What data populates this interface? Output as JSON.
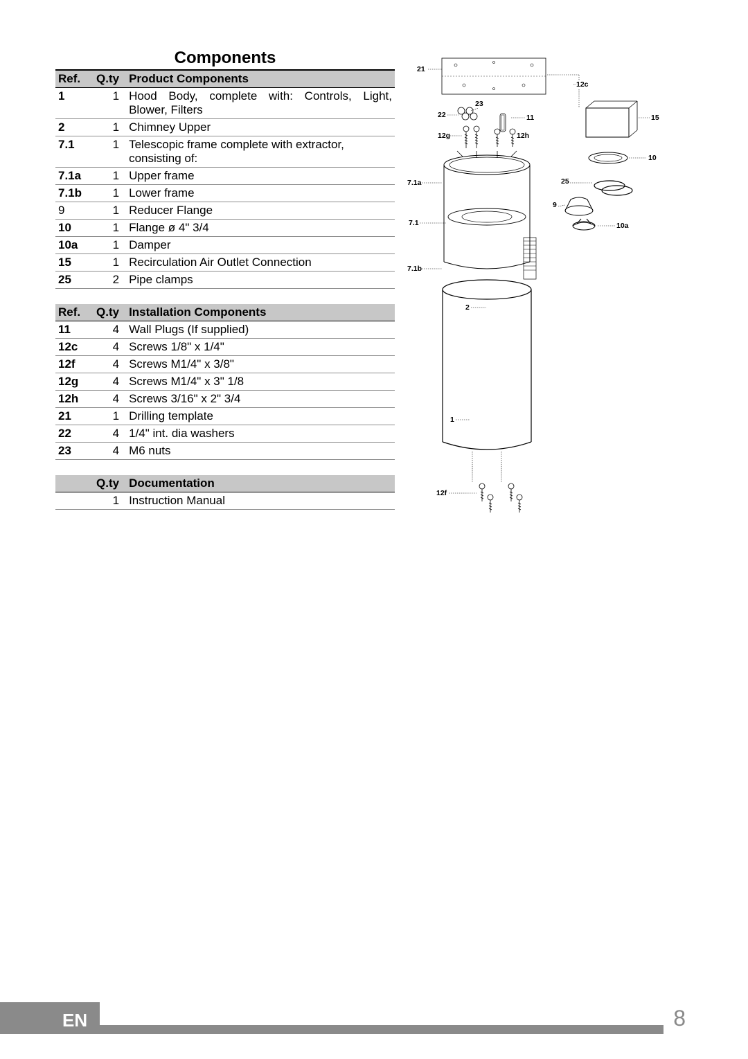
{
  "page_title": "Components",
  "footer": {
    "lang": "EN",
    "page_num": "8"
  },
  "tables": {
    "product": {
      "headers": {
        "ref": "Ref.",
        "qty": "Q.ty",
        "desc": "Product Components"
      },
      "rows": [
        {
          "ref": "1",
          "qty": "1",
          "desc": "Hood Body, complete with: Controls, Light, Blower, Filters",
          "justify": true
        },
        {
          "ref": "2",
          "qty": "1",
          "desc": "Chimney Upper"
        },
        {
          "ref": "7.1",
          "qty": "1",
          "desc": "Telescopic frame complete with extractor, consisting of:"
        },
        {
          "ref": "7.1a",
          "qty": "1",
          "desc": "Upper frame"
        },
        {
          "ref": "7.1b",
          "qty": "1",
          "desc": "Lower frame"
        },
        {
          "ref": "9",
          "qty": "1",
          "desc": "Reducer Flange",
          "ref_normal": true
        },
        {
          "ref": "10",
          "qty": "1",
          "desc": "Flange ø 4\" 3/4"
        },
        {
          "ref": "10a",
          "qty": "1",
          "desc": "Damper"
        },
        {
          "ref": "15",
          "qty": "1",
          "desc": "Recirculation Air Outlet Connection"
        },
        {
          "ref": "25",
          "qty": "2",
          "desc": "Pipe clamps"
        }
      ]
    },
    "installation": {
      "headers": {
        "ref": "Ref.",
        "qty": "Q.ty",
        "desc": "Installation Components"
      },
      "rows": [
        {
          "ref": "11",
          "qty": "4",
          "desc": "Wall Plugs (If supplied)"
        },
        {
          "ref": "12c",
          "qty": "4",
          "desc": "Screws 1/8\" x 1/4\""
        },
        {
          "ref": "12f",
          "qty": "4",
          "desc": "Screws M1/4\" x 3/8\""
        },
        {
          "ref": "12g",
          "qty": "4",
          "desc": "Screws M1/4\" x 3\" 1/8"
        },
        {
          "ref": "12h",
          "qty": "4",
          "desc": "Screws 3/16\" x 2\" 3/4"
        },
        {
          "ref": "21",
          "qty": "1",
          "desc": "Drilling template"
        },
        {
          "ref": "22",
          "qty": "4",
          "desc": "1/4\"  int. dia washers"
        },
        {
          "ref": "23",
          "qty": "4",
          "desc": "M6 nuts"
        }
      ]
    },
    "documentation": {
      "headers": {
        "qty": "Q.ty",
        "desc": "Documentation"
      },
      "rows": [
        {
          "ref": "",
          "qty": "1",
          "desc": "Instruction Manual"
        }
      ]
    }
  },
  "diagram_labels": {
    "l21": "21",
    "l12c": "12c",
    "l23": "23",
    "l22": "22",
    "l11": "11",
    "l15": "15",
    "l12g": "12g",
    "l12h": "12h",
    "l10": "10",
    "l7_1a": "7.1a",
    "l25": "25",
    "l9": "9",
    "l7_1": "7.1",
    "l10a": "10a",
    "l7_1b": "7.1b",
    "l2": "2",
    "l1": "1",
    "l12f": "12f"
  },
  "colors": {
    "header_bg": "#c7c7c7",
    "row_border": "#8c8c8c",
    "title_border": "#000000",
    "footer_bg": "#8a8a8a",
    "footer_text": "#ffffff",
    "page_num_color": "#8a8a8a",
    "line": "#000000"
  }
}
